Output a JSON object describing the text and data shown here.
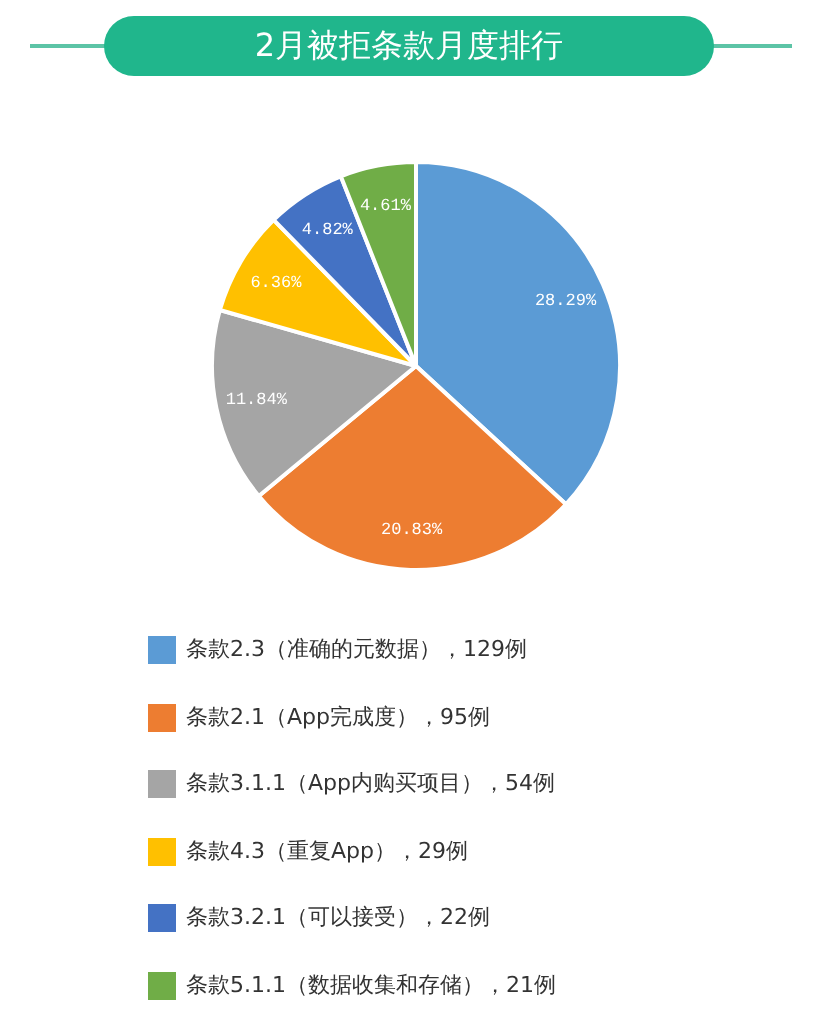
{
  "chart_data": {
    "type": "pie",
    "title": "2月被拒条款月度排行",
    "categories": [
      "条款2.3（准确的元数据），129例",
      "条款2.1（App完成度），95例",
      "条款3.1.1（App内购买项目），54例",
      "条款4.3（重复App），29例",
      "条款3.2.1（可以接受），22例",
      "条款5.1.1（数据收集和存储），21例"
    ],
    "values": [
      28.29,
      20.83,
      11.84,
      6.36,
      4.82,
      4.61
    ],
    "colors": [
      "#5b9bd5",
      "#ed7d31",
      "#a5a5a5",
      "#ffc000",
      "#4472c4",
      "#70ad47"
    ],
    "value_labels": [
      "28.29%",
      "20.83%",
      "11.84%",
      "6.36%",
      "4.82%",
      "4.61%"
    ],
    "legend": "bottom"
  }
}
